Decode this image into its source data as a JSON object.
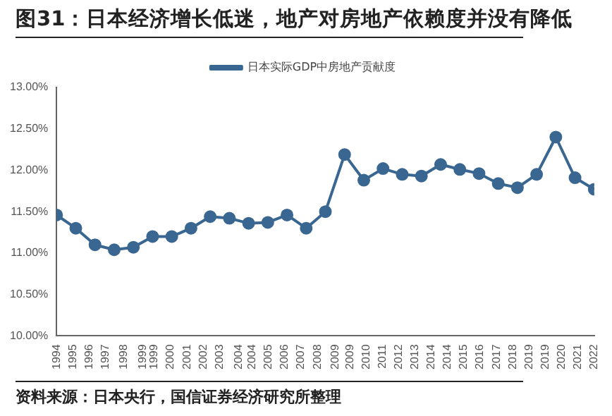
{
  "chart_data": {
    "type": "line",
    "title": "图31：日本经济增长低迷，地产对房地产依赖度并没有降低",
    "x": [
      1994,
      1995,
      1996,
      1997,
      1998,
      1999,
      2000,
      2001,
      2002,
      2003,
      2004,
      2005,
      2006,
      2007,
      2008,
      2009,
      2010,
      2011,
      2012,
      2013,
      2014,
      2015,
      2016,
      2017,
      2018,
      2019,
      2020,
      2021,
      2022
    ],
    "series": [
      {
        "name": "日本实际GDP中房地产贡献度",
        "color": "#3a6791",
        "values": [
          11.46,
          11.3,
          11.1,
          11.04,
          11.07,
          11.2,
          11.2,
          11.3,
          11.44,
          11.42,
          11.36,
          11.37,
          11.46,
          11.3,
          11.5,
          12.19,
          11.88,
          12.02,
          11.95,
          11.93,
          12.07,
          12.01,
          11.96,
          11.84,
          11.79,
          11.95,
          12.4,
          11.91,
          11.77
        ]
      }
    ],
    "xlim": [
      1994,
      2022
    ],
    "xticks": [
      {
        "value": 1994,
        "label": "1994"
      },
      {
        "value": 1994.85,
        "label": "1995"
      },
      {
        "value": 1995.7,
        "label": "1996"
      },
      {
        "value": 1996.55,
        "label": "1997"
      },
      {
        "value": 1997.5,
        "label": "1998"
      },
      {
        "value": 1998.5,
        "label": "1999"
      },
      {
        "value": 1999.09,
        "label": "1999"
      },
      {
        "value": 1999.94,
        "label": "2000"
      },
      {
        "value": 2000.79,
        "label": "2001"
      },
      {
        "value": 2001.64,
        "label": "2002"
      },
      {
        "value": 2002.5,
        "label": "2003"
      },
      {
        "value": 2003.5,
        "label": "2004"
      },
      {
        "value": 2004.18,
        "label": "2004"
      },
      {
        "value": 2005.03,
        "label": "2005"
      },
      {
        "value": 2005.88,
        "label": "2006"
      },
      {
        "value": 2006.73,
        "label": "2007"
      },
      {
        "value": 2007.58,
        "label": "2008"
      },
      {
        "value": 2008.5,
        "label": "2009"
      },
      {
        "value": 2009.27,
        "label": "2009"
      },
      {
        "value": 2010.12,
        "label": "2010"
      },
      {
        "value": 2010.97,
        "label": "2011"
      },
      {
        "value": 2011.82,
        "label": "2012"
      },
      {
        "value": 2012.67,
        "label": "2013"
      },
      {
        "value": 2013.52,
        "label": "2014"
      },
      {
        "value": 2014.36,
        "label": "2014"
      },
      {
        "value": 2015.21,
        "label": "2015"
      },
      {
        "value": 2016.06,
        "label": "2016"
      },
      {
        "value": 2016.91,
        "label": "2017"
      },
      {
        "value": 2017.76,
        "label": "2018"
      },
      {
        "value": 2018.61,
        "label": "2019"
      },
      {
        "value": 2019.45,
        "label": "2019"
      },
      {
        "value": 2020.3,
        "label": "2020"
      },
      {
        "value": 2021.15,
        "label": "2021"
      },
      {
        "value": 2022,
        "label": "2022"
      }
    ],
    "ylim": [
      10,
      13
    ],
    "yticks": [
      {
        "value": 10,
        "label": "10.00%"
      },
      {
        "value": 10.5,
        "label": "10.50%"
      },
      {
        "value": 11,
        "label": "11.00%"
      },
      {
        "value": 11.5,
        "label": "11.50%"
      },
      {
        "value": 12,
        "label": "12.00%"
      },
      {
        "value": 12.5,
        "label": "12.50%"
      },
      {
        "value": 13,
        "label": "13.00%"
      }
    ],
    "grid": false,
    "legend": "top",
    "marker": "circle",
    "line_style": "solid",
    "annotations": [
      "资料来源：日本央行，国信证券经济研究所整理"
    ]
  }
}
